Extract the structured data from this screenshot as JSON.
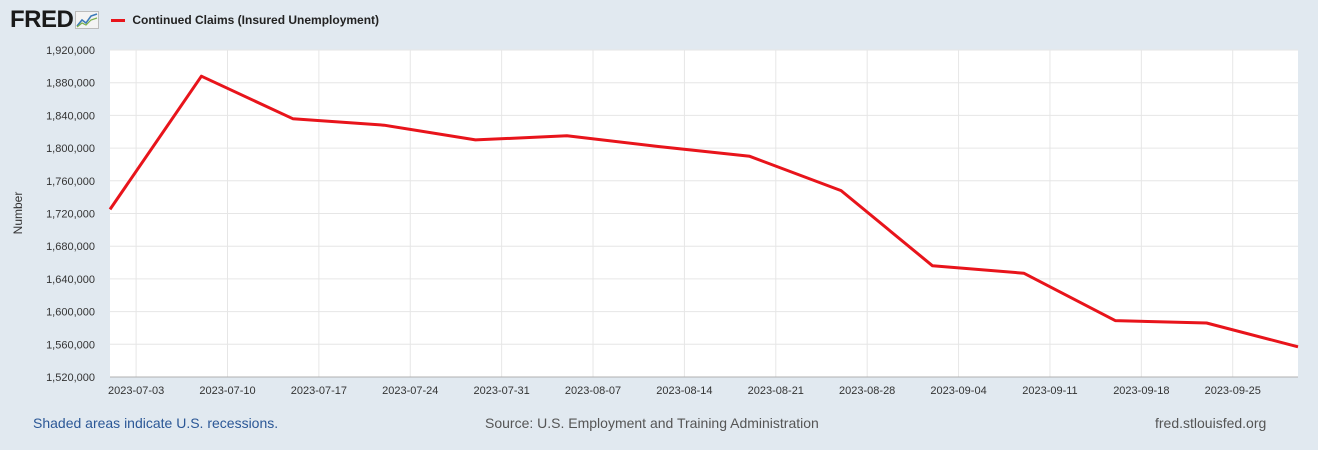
{
  "header": {
    "logo_text": "FRED",
    "logo_icon": "line-chart-icon"
  },
  "footer": {
    "recession_note": "Shaded areas indicate U.S. recessions.",
    "source": "Source: U.S. Employment and Training Administration",
    "site": "fred.stlouisfed.org"
  },
  "colors": {
    "series": "#e8141b",
    "background": "#e1e9f0",
    "plot": "#ffffff",
    "grid": "#e6e6e6"
  },
  "chart_data": {
    "type": "line",
    "title": "",
    "xlabel": "",
    "ylabel": "Number",
    "x": [
      "2023-07-01",
      "2023-07-08",
      "2023-07-15",
      "2023-07-22",
      "2023-07-29",
      "2023-08-05",
      "2023-08-12",
      "2023-08-19",
      "2023-08-26",
      "2023-09-02",
      "2023-09-09",
      "2023-09-16",
      "2023-09-23",
      "2023-09-30"
    ],
    "series": [
      {
        "name": "Continued Claims (Insured Unemployment)",
        "values": [
          1725000,
          1888000,
          1836000,
          1828000,
          1810000,
          1815000,
          1802000,
          1790000,
          1748000,
          1656000,
          1647000,
          1589000,
          1586000,
          1557000
        ]
      }
    ],
    "xlim": [
      "2023-07-01",
      "2023-09-30"
    ],
    "ylim": [
      1520000,
      1920000
    ],
    "yticks": [
      1520000,
      1560000,
      1600000,
      1640000,
      1680000,
      1720000,
      1760000,
      1800000,
      1840000,
      1880000,
      1920000
    ],
    "ytick_labels": [
      "1,520,000",
      "1,560,000",
      "1,600,000",
      "1,640,000",
      "1,680,000",
      "1,720,000",
      "1,760,000",
      "1,800,000",
      "1,840,000",
      "1,880,000",
      "1,920,000"
    ],
    "xticks": [
      "2023-07-03",
      "2023-07-10",
      "2023-07-17",
      "2023-07-24",
      "2023-07-31",
      "2023-08-07",
      "2023-08-14",
      "2023-08-21",
      "2023-08-28",
      "2023-09-04",
      "2023-09-11",
      "2023-09-18",
      "2023-09-25"
    ],
    "grid": true,
    "legend": "top-left"
  }
}
